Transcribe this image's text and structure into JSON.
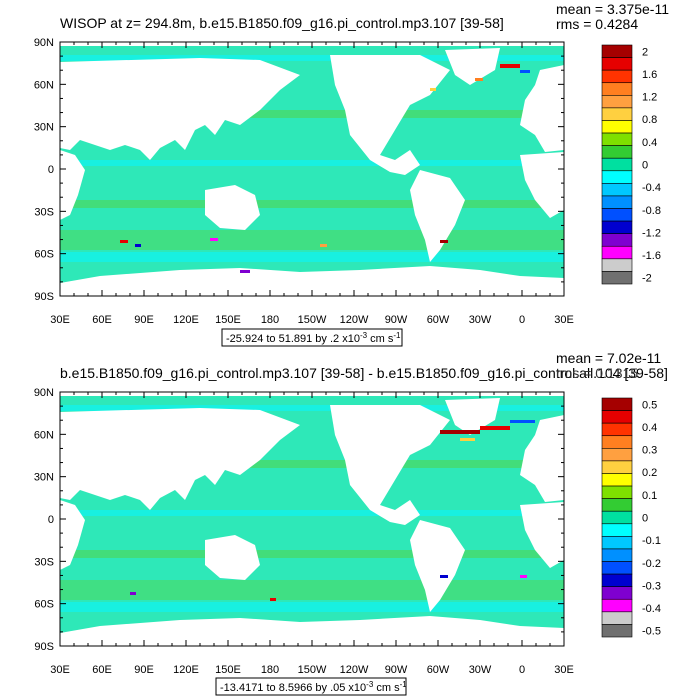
{
  "panels": [
    {
      "title": "WISOP at z= 294.8m, b.e15.B1850.f09_g16.pi_control.mp3.107 [39-58]",
      "mean_text": "mean = 3.375e-11",
      "rms_text": "rms = 0.4284",
      "range_text": "-25.924 to 51.891 by .2 x10",
      "range_exp": "-3",
      "range_unit_pre": " cm s",
      "range_unit_exp": "-1",
      "colorbar_labels": [
        "2",
        "1.6",
        "1.2",
        "0.8",
        "0.4",
        "0",
        "-0.4",
        "-0.8",
        "-1.2",
        "-1.6",
        "-2"
      ],
      "colorbar_colors": [
        "#a50000",
        "#e60000",
        "#ff3300",
        "#ff7f20",
        "#ffa040",
        "#ffd040",
        "#ffff00",
        "#7fe000",
        "#33cc33",
        "#00e0a0",
        "#00ffff",
        "#00c8ff",
        "#0090ff",
        "#0050ff",
        "#0000d0",
        "#7f00d0",
        "#ff00ff",
        "#cccccc",
        "#707070"
      ]
    },
    {
      "title": "b.e15.B1850.f09_g16.pi_control.mp3.107 [39-58] - b.e15.B1850.f09_g16.pi_control.all.104 [39-58]",
      "mean_text": "mean = 7.02e-11",
      "rms_text": "rms = 0.1315",
      "range_text": "-13.4171 to 8.5966 by .05 x10",
      "range_exp": "-3",
      "range_unit_pre": " cm s",
      "range_unit_exp": "-1",
      "colorbar_labels": [
        "0.5",
        "0.4",
        "0.3",
        "0.2",
        "0.1",
        "0",
        "-0.1",
        "-0.2",
        "-0.3",
        "-0.4",
        "-0.5"
      ],
      "colorbar_colors": [
        "#a50000",
        "#e60000",
        "#ff3300",
        "#ff7f20",
        "#ffa040",
        "#ffd040",
        "#ffff00",
        "#7fe000",
        "#33cc33",
        "#00e0a0",
        "#00ffff",
        "#00c8ff",
        "#0090ff",
        "#0050ff",
        "#0000d0",
        "#7f00d0",
        "#ff00ff",
        "#cccccc",
        "#707070"
      ]
    }
  ],
  "lat_labels": [
    "90N",
    "60N",
    "30N",
    "0",
    "30S",
    "60S",
    "90S"
  ],
  "lon_labels": [
    "30E",
    "60E",
    "90E",
    "120E",
    "150E",
    "180",
    "150W",
    "120W",
    "90W",
    "60W",
    "30W",
    "0",
    "30E"
  ],
  "colors": {
    "ocean": "#2ee8b8",
    "ocean_pale": "#18f0e0",
    "ocean_green": "#4cd860",
    "land": "#ffffff"
  }
}
